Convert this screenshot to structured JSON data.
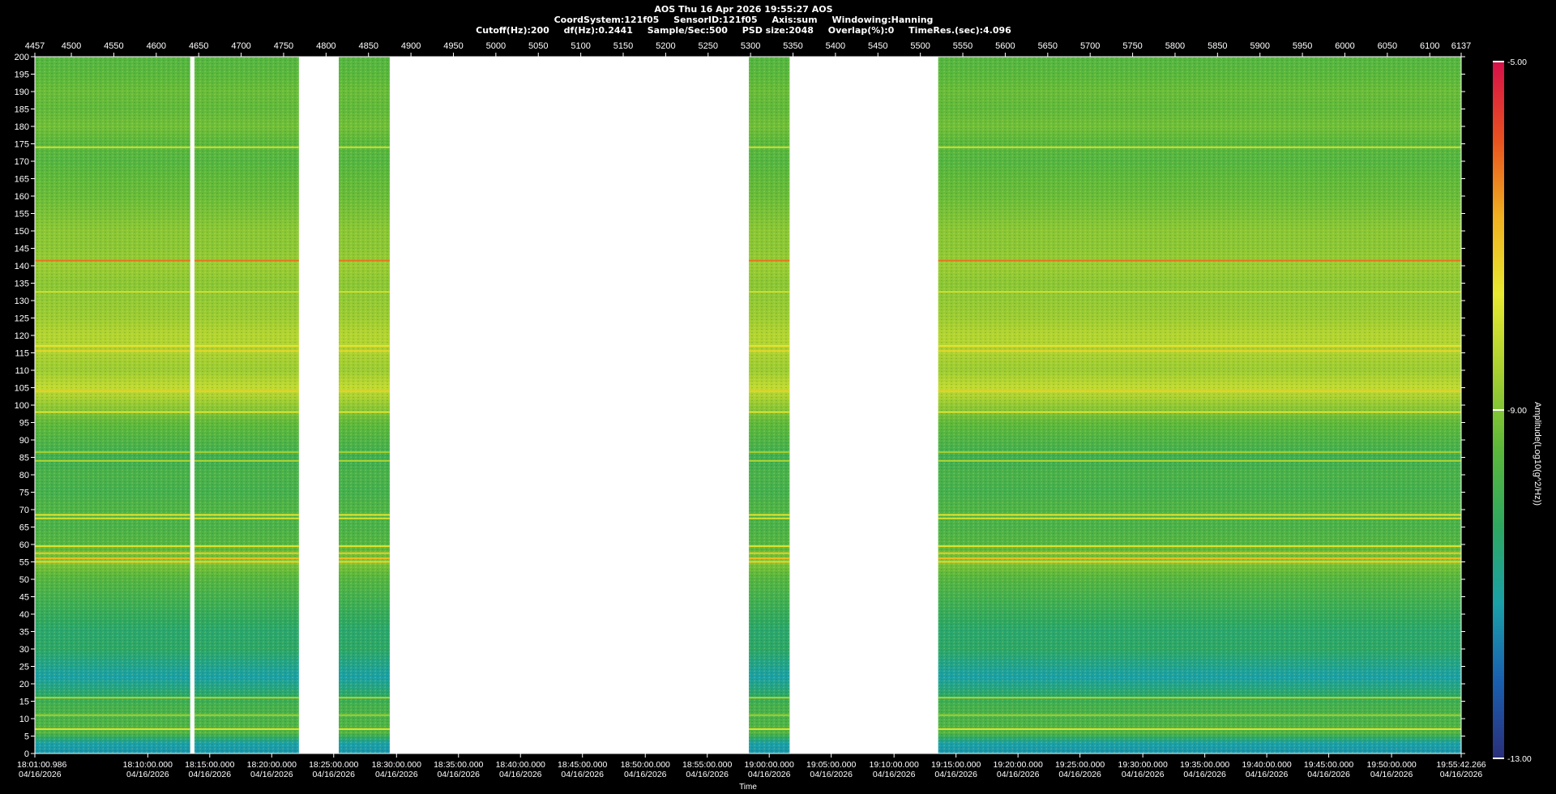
{
  "header": {
    "line1": "AOS  Thu 16 Apr 2026 19:55:27  AOS",
    "line2_items": [
      "CoordSystem:121f05",
      "SensorID:121f05",
      "Axis:sum",
      "Windowing:Hanning"
    ],
    "line3_items": [
      "Cutoff(Hz):200",
      "df(Hz):0.2441",
      "Sample/Sec:500",
      "PSD size:2048",
      "Overlap(%):0",
      "TimeRes.(sec):4.096"
    ]
  },
  "colors": {
    "background": "#000000",
    "gap_fill": "#ffffff",
    "colormap": [
      "#2a2f7a",
      "#1a5fb0",
      "#1aa0a8",
      "#2ea860",
      "#5cb83a",
      "#a8d030",
      "#e8e830",
      "#f0b020",
      "#e85020",
      "#d8104a"
    ]
  },
  "chart_data": {
    "type": "heatmap",
    "title": "AOS  Thu 16 Apr 2026 19:55:27  AOS",
    "xlabel": "Time",
    "ylabel": "",
    "colorbar_label": "Amplitude(Log10(g^2/Hz))",
    "y_range": [
      0,
      200
    ],
    "y_ticks": [
      0,
      5,
      10,
      15,
      20,
      25,
      30,
      35,
      40,
      45,
      50,
      55,
      60,
      65,
      70,
      75,
      80,
      85,
      90,
      95,
      100,
      105,
      110,
      115,
      120,
      125,
      130,
      135,
      140,
      145,
      150,
      155,
      160,
      165,
      170,
      175,
      180,
      185,
      190,
      195,
      200
    ],
    "top_axis_range": [
      4457,
      6137
    ],
    "top_ticks": [
      "4457",
      "4500",
      "4550",
      "4600",
      "4650",
      "4700",
      "4750",
      "4800",
      "4850",
      "4900",
      "4950",
      "5000",
      "5050",
      "5100",
      "5150",
      "5200",
      "5250",
      "5300",
      "5350",
      "5400",
      "5450",
      "5500",
      "5550",
      "5600",
      "5650",
      "5700",
      "5750",
      "5800",
      "5850",
      "5900",
      "5950",
      "6000",
      "6050",
      "6100",
      "6137"
    ],
    "bottom_ticks": [
      {
        "index": 4457,
        "time": "18:01:00.986",
        "date": "04/16/2026"
      },
      {
        "index": 4590,
        "time": "18:10:00.000",
        "date": "04/16/2026"
      },
      {
        "index": 4663,
        "time": "18:15:00.000",
        "date": "04/16/2026"
      },
      {
        "index": 4736,
        "time": "18:20:00.000",
        "date": "04/16/2026"
      },
      {
        "index": 4809,
        "time": "18:25:00.000",
        "date": "04/16/2026"
      },
      {
        "index": 4883,
        "time": "18:30:00.000",
        "date": "04/16/2026"
      },
      {
        "index": 4956,
        "time": "18:35:00.000",
        "date": "04/16/2026"
      },
      {
        "index": 5029,
        "time": "18:40:00.000",
        "date": "04/16/2026"
      },
      {
        "index": 5102,
        "time": "18:45:00.000",
        "date": "04/16/2026"
      },
      {
        "index": 5176,
        "time": "18:50:00.000",
        "date": "04/16/2026"
      },
      {
        "index": 5249,
        "time": "18:55:00.000",
        "date": "04/16/2026"
      },
      {
        "index": 5322,
        "time": "19:00:00.000",
        "date": "04/16/2026"
      },
      {
        "index": 5395,
        "time": "19:05:00.000",
        "date": "04/16/2026"
      },
      {
        "index": 5469,
        "time": "19:10:00.000",
        "date": "04/16/2026"
      },
      {
        "index": 5542,
        "time": "19:15:00.000",
        "date": "04/16/2026"
      },
      {
        "index": 5615,
        "time": "19:20:00.000",
        "date": "04/16/2026"
      },
      {
        "index": 5688,
        "time": "19:25:00.000",
        "date": "04/16/2026"
      },
      {
        "index": 5762,
        "time": "19:30:00.000",
        "date": "04/16/2026"
      },
      {
        "index": 5835,
        "time": "19:35:00.000",
        "date": "04/16/2026"
      },
      {
        "index": 5908,
        "time": "19:40:00.000",
        "date": "04/16/2026"
      },
      {
        "index": 5981,
        "time": "19:45:00.000",
        "date": "04/16/2026"
      },
      {
        "index": 6055,
        "time": "19:50:00.000",
        "date": "04/16/2026"
      },
      {
        "index": 6137,
        "time": "19:55:42.266",
        "date": "04/16/2026"
      }
    ],
    "data_segments": [
      [
        4457,
        4640
      ],
      [
        4645,
        4768
      ],
      [
        4815,
        4875
      ],
      [
        5298,
        5346
      ],
      [
        5521,
        6137
      ]
    ],
    "colorbar_range": [
      -13.0,
      -5.0
    ],
    "colorbar_ticks": [
      "-5.00",
      "-9.00",
      "-13.00"
    ],
    "spectral_profile": [
      [
        0,
        -11.4
      ],
      [
        3,
        -11.2
      ],
      [
        6,
        -9.6
      ],
      [
        10,
        -9.8
      ],
      [
        14,
        -9.9
      ],
      [
        18,
        -10.6
      ],
      [
        22,
        -11.2
      ],
      [
        26,
        -10.8
      ],
      [
        30,
        -10.4
      ],
      [
        35,
        -10.5
      ],
      [
        40,
        -10.2
      ],
      [
        45,
        -9.9
      ],
      [
        50,
        -9.6
      ],
      [
        55,
        -9.0
      ],
      [
        60,
        -9.6
      ],
      [
        65,
        -9.8
      ],
      [
        70,
        -9.7
      ],
      [
        75,
        -9.9
      ],
      [
        80,
        -9.8
      ],
      [
        85,
        -10.0
      ],
      [
        90,
        -9.7
      ],
      [
        95,
        -9.4
      ],
      [
        100,
        -8.8
      ],
      [
        105,
        -8.2
      ],
      [
        110,
        -8.7
      ],
      [
        115,
        -8.5
      ],
      [
        120,
        -8.4
      ],
      [
        125,
        -8.7
      ],
      [
        130,
        -8.8
      ],
      [
        135,
        -8.9
      ],
      [
        140,
        -8.7
      ],
      [
        145,
        -8.9
      ],
      [
        150,
        -8.9
      ],
      [
        155,
        -9.1
      ],
      [
        160,
        -9.3
      ],
      [
        165,
        -9.4
      ],
      [
        170,
        -9.6
      ],
      [
        175,
        -9.5
      ],
      [
        180,
        -9.2
      ],
      [
        185,
        -9.4
      ],
      [
        190,
        -9.3
      ],
      [
        195,
        -9.5
      ],
      [
        200,
        -9.6
      ]
    ],
    "spectral_lines": [
      {
        "hz": 141.5,
        "level": -6.2
      },
      {
        "hz": 174,
        "level": -8.0
      },
      {
        "hz": 132.5,
        "level": -8.0
      },
      {
        "hz": 117,
        "level": -7.6
      },
      {
        "hz": 115.5,
        "level": -7.4
      },
      {
        "hz": 104,
        "level": -7.3
      },
      {
        "hz": 98,
        "level": -7.8
      },
      {
        "hz": 86.5,
        "level": -8.6
      },
      {
        "hz": 84,
        "level": -8.4
      },
      {
        "hz": 68.5,
        "level": -7.6
      },
      {
        "hz": 67.5,
        "level": -7.9
      },
      {
        "hz": 59.5,
        "level": -7.6
      },
      {
        "hz": 57.5,
        "level": -7.2
      },
      {
        "hz": 56,
        "level": -7.0
      },
      {
        "hz": 55,
        "level": -7.4
      },
      {
        "hz": 16,
        "level": -8.4
      },
      {
        "hz": 11,
        "level": -8.6
      },
      {
        "hz": 7,
        "level": -7.8
      }
    ]
  }
}
